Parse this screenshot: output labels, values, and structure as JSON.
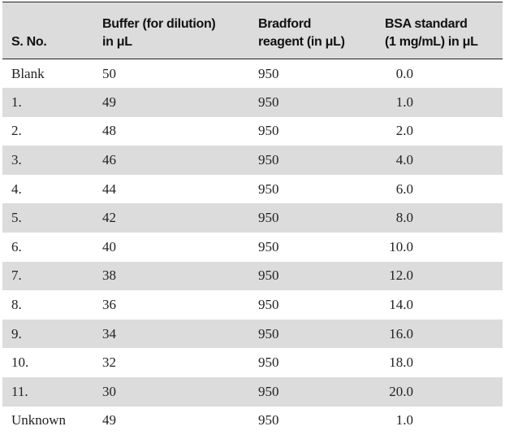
{
  "table": {
    "header": [
      [
        "S. No."
      ],
      [
        "Buffer (for dilution)",
        "in μL"
      ],
      [
        "Bradford",
        "reagent (in μL)"
      ],
      [
        "BSA standard",
        "(1 mg/mL) in μL"
      ]
    ],
    "rows": [
      [
        "Blank",
        "50",
        "950",
        "0.0"
      ],
      [
        "1.",
        "49",
        "950",
        "1.0"
      ],
      [
        "2.",
        "48",
        "950",
        "2.0"
      ],
      [
        "3.",
        "46",
        "950",
        "4.0"
      ],
      [
        "4.",
        "44",
        "950",
        "6.0"
      ],
      [
        "5.",
        "42",
        "950",
        "8.0"
      ],
      [
        "6.",
        "40",
        "950",
        "10.0"
      ],
      [
        "7.",
        "38",
        "950",
        "12.0"
      ],
      [
        "8.",
        "36",
        "950",
        "14.0"
      ],
      [
        "9.",
        "34",
        "950",
        "16.0"
      ],
      [
        "10.",
        "32",
        "950",
        "18.0"
      ],
      [
        "11.",
        "30",
        "950",
        "20.0"
      ],
      [
        "Unknown",
        "49",
        "950",
        "1.0"
      ]
    ]
  }
}
